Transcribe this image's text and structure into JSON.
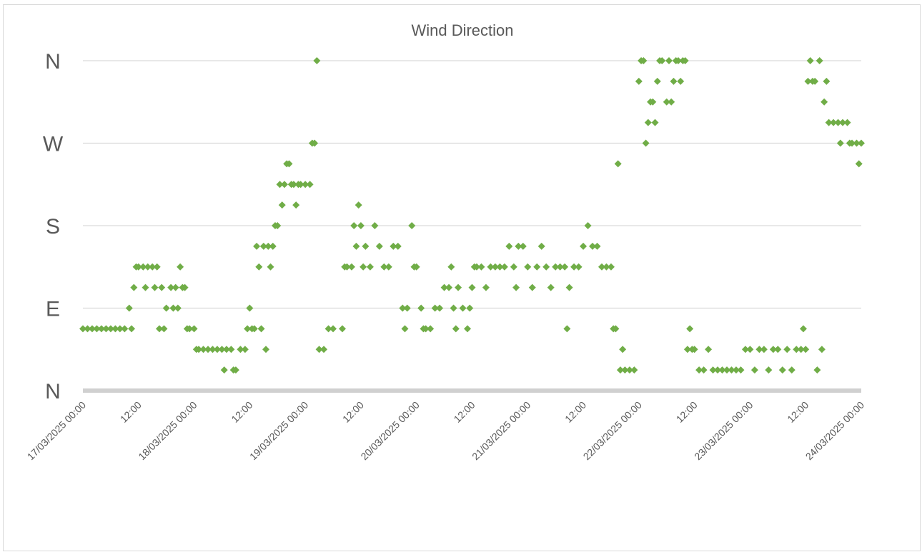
{
  "chart_data": {
    "type": "scatter",
    "title": "Wind Direction",
    "xlabel": "",
    "ylabel": "",
    "marker": "diamond",
    "color": "#70ad47",
    "grid": true,
    "legend": "none",
    "xlim": [
      "17/03/2025 00:00",
      "24/03/2025 00:00"
    ],
    "ylim": [
      0,
      360
    ],
    "y_ticks": [
      {
        "value": 0,
        "label": "N"
      },
      {
        "value": 90,
        "label": "E"
      },
      {
        "value": 180,
        "label": "S"
      },
      {
        "value": 270,
        "label": "W"
      },
      {
        "value": 360,
        "label": "N"
      }
    ],
    "x_tick_labels": [
      "17/03/2025 00:00",
      "12:00",
      "18/03/2025 00:00",
      "12:00",
      "19/03/2025 00:00",
      "12:00",
      "20/03/2025 00:00",
      "12:00",
      "21/03/2025 00:00",
      "12:00",
      "22/03/2025 00:00",
      "12:00",
      "23/03/2025 00:00",
      "12:00",
      "24/03/2025 00:00"
    ],
    "series": [
      {
        "points": [
          [
            "17/03/2025 00:00",
            67.5
          ],
          [
            "17/03/2025 01:00",
            67.5
          ],
          [
            "17/03/2025 02:00",
            67.5
          ],
          [
            "17/03/2025 03:00",
            67.5
          ],
          [
            "17/03/2025 04:00",
            67.5
          ],
          [
            "17/03/2025 05:00",
            67.5
          ],
          [
            "17/03/2025 06:00",
            67.5
          ],
          [
            "17/03/2025 07:00",
            67.5
          ],
          [
            "17/03/2025 08:00",
            67.5
          ],
          [
            "17/03/2025 09:00",
            67.5
          ],
          [
            "17/03/2025 10:00",
            90
          ],
          [
            "17/03/2025 10:30",
            67.5
          ],
          [
            "17/03/2025 11:00",
            112.5
          ],
          [
            "17/03/2025 11:30",
            135
          ],
          [
            "17/03/2025 12:00",
            135
          ],
          [
            "17/03/2025 13:00",
            135
          ],
          [
            "17/03/2025 13:30",
            112.5
          ],
          [
            "17/03/2025 14:00",
            135
          ],
          [
            "17/03/2025 15:00",
            135
          ],
          [
            "17/03/2025 15:30",
            112.5
          ],
          [
            "17/03/2025 16:00",
            135
          ],
          [
            "17/03/2025 16:30",
            67.5
          ],
          [
            "17/03/2025 17:00",
            112.5
          ],
          [
            "17/03/2025 17:30",
            67.5
          ],
          [
            "17/03/2025 18:00",
            90
          ],
          [
            "17/03/2025 19:00",
            112.5
          ],
          [
            "17/03/2025 19:30",
            90
          ],
          [
            "17/03/2025 20:00",
            112.5
          ],
          [
            "17/03/2025 20:30",
            90
          ],
          [
            "17/03/2025 21:00",
            135
          ],
          [
            "17/03/2025 21:30",
            112.5
          ],
          [
            "17/03/2025 22:00",
            112.5
          ],
          [
            "17/03/2025 22:30",
            67.5
          ],
          [
            "17/03/2025 23:00",
            67.5
          ],
          [
            "18/03/2025 00:00",
            67.5
          ],
          [
            "18/03/2025 00:30",
            45
          ],
          [
            "18/03/2025 01:00",
            45
          ],
          [
            "18/03/2025 02:00",
            45
          ],
          [
            "18/03/2025 03:00",
            45
          ],
          [
            "18/03/2025 04:00",
            45
          ],
          [
            "18/03/2025 05:00",
            45
          ],
          [
            "18/03/2025 06:00",
            45
          ],
          [
            "18/03/2025 06:30",
            22.5
          ],
          [
            "18/03/2025 07:00",
            45
          ],
          [
            "18/03/2025 08:00",
            45
          ],
          [
            "18/03/2025 08:30",
            22.5
          ],
          [
            "18/03/2025 09:00",
            22.5
          ],
          [
            "18/03/2025 10:00",
            45
          ],
          [
            "18/03/2025 11:00",
            45
          ],
          [
            "18/03/2025 11:30",
            67.5
          ],
          [
            "18/03/2025 12:00",
            90
          ],
          [
            "18/03/2025 12:30",
            67.5
          ],
          [
            "18/03/2025 13:00",
            67.5
          ],
          [
            "18/03/2025 13:30",
            157.5
          ],
          [
            "18/03/2025 14:00",
            135
          ],
          [
            "18/03/2025 14:30",
            67.5
          ],
          [
            "18/03/2025 15:00",
            157.5
          ],
          [
            "18/03/2025 15:30",
            45
          ],
          [
            "18/03/2025 16:00",
            157.5
          ],
          [
            "18/03/2025 16:30",
            135
          ],
          [
            "18/03/2025 17:00",
            157.5
          ],
          [
            "18/03/2025 17:30",
            180
          ],
          [
            "18/03/2025 18:00",
            180
          ],
          [
            "18/03/2025 18:30",
            225
          ],
          [
            "18/03/2025 19:00",
            202.5
          ],
          [
            "18/03/2025 19:30",
            225
          ],
          [
            "18/03/2025 20:00",
            247.5
          ],
          [
            "18/03/2025 20:30",
            247.5
          ],
          [
            "18/03/2025 21:00",
            225
          ],
          [
            "18/03/2025 21:30",
            225
          ],
          [
            "18/03/2025 22:00",
            202.5
          ],
          [
            "18/03/2025 22:30",
            225
          ],
          [
            "18/03/2025 23:00",
            225
          ],
          [
            "19/03/2025 00:00",
            225
          ],
          [
            "19/03/2025 01:00",
            225
          ],
          [
            "19/03/2025 01:30",
            270
          ],
          [
            "19/03/2025 02:00",
            270
          ],
          [
            "19/03/2025 02:30",
            360
          ],
          [
            "19/03/2025 03:00",
            45
          ],
          [
            "19/03/2025 04:00",
            45
          ],
          [
            "19/03/2025 05:00",
            67.5
          ],
          [
            "19/03/2025 06:00",
            67.5
          ],
          [
            "19/03/2025 08:00",
            67.5
          ],
          [
            "19/03/2025 08:30",
            135
          ],
          [
            "19/03/2025 09:00",
            135
          ],
          [
            "19/03/2025 10:00",
            135
          ],
          [
            "19/03/2025 10:30",
            180
          ],
          [
            "19/03/2025 11:00",
            157.5
          ],
          [
            "19/03/2025 11:30",
            202.5
          ],
          [
            "19/03/2025 12:00",
            180
          ],
          [
            "19/03/2025 12:30",
            135
          ],
          [
            "19/03/2025 13:00",
            157.5
          ],
          [
            "19/03/2025 14:00",
            135
          ],
          [
            "19/03/2025 15:00",
            180
          ],
          [
            "19/03/2025 16:00",
            157.5
          ],
          [
            "19/03/2025 17:00",
            135
          ],
          [
            "19/03/2025 18:00",
            135
          ],
          [
            "19/03/2025 19:00",
            157.5
          ],
          [
            "19/03/2025 20:00",
            157.5
          ],
          [
            "19/03/2025 21:00",
            90
          ],
          [
            "19/03/2025 21:30",
            67.5
          ],
          [
            "19/03/2025 22:00",
            90
          ],
          [
            "19/03/2025 23:00",
            180
          ],
          [
            "19/03/2025 23:30",
            135
          ],
          [
            "20/03/2025 00:00",
            135
          ],
          [
            "20/03/2025 01:00",
            90
          ],
          [
            "20/03/2025 01:30",
            67.5
          ],
          [
            "20/03/2025 02:00",
            67.5
          ],
          [
            "20/03/2025 03:00",
            67.5
          ],
          [
            "20/03/2025 04:00",
            90
          ],
          [
            "20/03/2025 05:00",
            90
          ],
          [
            "20/03/2025 06:00",
            112.5
          ],
          [
            "20/03/2025 07:00",
            112.5
          ],
          [
            "20/03/2025 07:30",
            135
          ],
          [
            "20/03/2025 08:00",
            90
          ],
          [
            "20/03/2025 08:30",
            67.5
          ],
          [
            "20/03/2025 09:00",
            112.5
          ],
          [
            "20/03/2025 10:00",
            90
          ],
          [
            "20/03/2025 11:00",
            67.5
          ],
          [
            "20/03/2025 11:30",
            90
          ],
          [
            "20/03/2025 12:00",
            112.5
          ],
          [
            "20/03/2025 12:30",
            135
          ],
          [
            "20/03/2025 13:00",
            135
          ],
          [
            "20/03/2025 14:00",
            135
          ],
          [
            "20/03/2025 15:00",
            112.5
          ],
          [
            "20/03/2025 16:00",
            135
          ],
          [
            "20/03/2025 17:00",
            135
          ],
          [
            "20/03/2025 18:00",
            135
          ],
          [
            "20/03/2025 19:00",
            135
          ],
          [
            "20/03/2025 20:00",
            157.5
          ],
          [
            "20/03/2025 21:00",
            135
          ],
          [
            "20/03/2025 21:30",
            112.5
          ],
          [
            "20/03/2025 22:00",
            157.5
          ],
          [
            "20/03/2025 23:00",
            157.5
          ],
          [
            "21/03/2025 00:00",
            135
          ],
          [
            "21/03/2025 01:00",
            112.5
          ],
          [
            "21/03/2025 02:00",
            135
          ],
          [
            "21/03/2025 03:00",
            157.5
          ],
          [
            "21/03/2025 04:00",
            135
          ],
          [
            "21/03/2025 05:00",
            112.5
          ],
          [
            "21/03/2025 06:00",
            135
          ],
          [
            "21/03/2025 07:00",
            135
          ],
          [
            "21/03/2025 08:00",
            135
          ],
          [
            "21/03/2025 08:30",
            67.5
          ],
          [
            "21/03/2025 09:00",
            112.5
          ],
          [
            "21/03/2025 10:00",
            135
          ],
          [
            "21/03/2025 11:00",
            135
          ],
          [
            "21/03/2025 12:00",
            157.5
          ],
          [
            "21/03/2025 13:00",
            180
          ],
          [
            "21/03/2025 14:00",
            157.5
          ],
          [
            "21/03/2025 15:00",
            157.5
          ],
          [
            "21/03/2025 16:00",
            135
          ],
          [
            "21/03/2025 17:00",
            135
          ],
          [
            "21/03/2025 18:00",
            135
          ],
          [
            "21/03/2025 18:30",
            67.5
          ],
          [
            "21/03/2025 19:00",
            67.5
          ],
          [
            "21/03/2025 19:30",
            247.5
          ],
          [
            "21/03/2025 20:00",
            22.5
          ],
          [
            "21/03/2025 20:30",
            45
          ],
          [
            "21/03/2025 21:00",
            22.5
          ],
          [
            "21/03/2025 22:00",
            22.5
          ],
          [
            "21/03/2025 23:00",
            22.5
          ],
          [
            "22/03/2025 00:00",
            337.5
          ],
          [
            "22/03/2025 00:30",
            360
          ],
          [
            "22/03/2025 01:00",
            360
          ],
          [
            "22/03/2025 01:30",
            270
          ],
          [
            "22/03/2025 02:00",
            292.5
          ],
          [
            "22/03/2025 02:30",
            315
          ],
          [
            "22/03/2025 03:00",
            315
          ],
          [
            "22/03/2025 03:30",
            292.5
          ],
          [
            "22/03/2025 04:00",
            337.5
          ],
          [
            "22/03/2025 04:30",
            360
          ],
          [
            "22/03/2025 05:00",
            360
          ],
          [
            "22/03/2025 06:00",
            315
          ],
          [
            "22/03/2025 06:30",
            360
          ],
          [
            "22/03/2025 07:00",
            315
          ],
          [
            "22/03/2025 07:30",
            337.5
          ],
          [
            "22/03/2025 08:00",
            360
          ],
          [
            "22/03/2025 08:30",
            360
          ],
          [
            "22/03/2025 09:00",
            337.5
          ],
          [
            "22/03/2025 09:30",
            360
          ],
          [
            "22/03/2025 10:00",
            360
          ],
          [
            "22/03/2025 10:30",
            45
          ],
          [
            "22/03/2025 11:00",
            67.5
          ],
          [
            "22/03/2025 11:30",
            45
          ],
          [
            "22/03/2025 12:00",
            45
          ],
          [
            "22/03/2025 13:00",
            22.5
          ],
          [
            "22/03/2025 14:00",
            22.5
          ],
          [
            "22/03/2025 15:00",
            45
          ],
          [
            "22/03/2025 16:00",
            22.5
          ],
          [
            "22/03/2025 17:00",
            22.5
          ],
          [
            "22/03/2025 18:00",
            22.5
          ],
          [
            "22/03/2025 19:00",
            22.5
          ],
          [
            "22/03/2025 20:00",
            22.5
          ],
          [
            "22/03/2025 21:00",
            22.5
          ],
          [
            "22/03/2025 22:00",
            22.5
          ],
          [
            "22/03/2025 23:00",
            45
          ],
          [
            "23/03/2025 00:00",
            45
          ],
          [
            "23/03/2025 01:00",
            22.5
          ],
          [
            "23/03/2025 02:00",
            45
          ],
          [
            "23/03/2025 03:00",
            45
          ],
          [
            "23/03/2025 04:00",
            22.5
          ],
          [
            "23/03/2025 05:00",
            45
          ],
          [
            "23/03/2025 06:00",
            45
          ],
          [
            "23/03/2025 07:00",
            22.5
          ],
          [
            "23/03/2025 08:00",
            45
          ],
          [
            "23/03/2025 09:00",
            22.5
          ],
          [
            "23/03/2025 10:00",
            45
          ],
          [
            "23/03/2025 11:00",
            45
          ],
          [
            "23/03/2025 11:30",
            67.5
          ],
          [
            "23/03/2025 12:00",
            45
          ],
          [
            "23/03/2025 12:30",
            337.5
          ],
          [
            "23/03/2025 13:00",
            360
          ],
          [
            "23/03/2025 13:30",
            337.5
          ],
          [
            "23/03/2025 14:00",
            337.5
          ],
          [
            "23/03/2025 14:30",
            22.5
          ],
          [
            "23/03/2025 15:00",
            360
          ],
          [
            "23/03/2025 15:30",
            45
          ],
          [
            "23/03/2025 16:00",
            315
          ],
          [
            "23/03/2025 16:30",
            337.5
          ],
          [
            "23/03/2025 17:00",
            292.5
          ],
          [
            "23/03/2025 18:00",
            292.5
          ],
          [
            "23/03/2025 19:00",
            292.5
          ],
          [
            "23/03/2025 19:30",
            270
          ],
          [
            "23/03/2025 20:00",
            292.5
          ],
          [
            "23/03/2025 21:00",
            292.5
          ],
          [
            "23/03/2025 21:30",
            270
          ],
          [
            "23/03/2025 22:00",
            270
          ],
          [
            "23/03/2025 23:00",
            270
          ],
          [
            "23/03/2025 23:30",
            247.5
          ],
          [
            "24/03/2025 00:00",
            270
          ]
        ]
      }
    ]
  }
}
